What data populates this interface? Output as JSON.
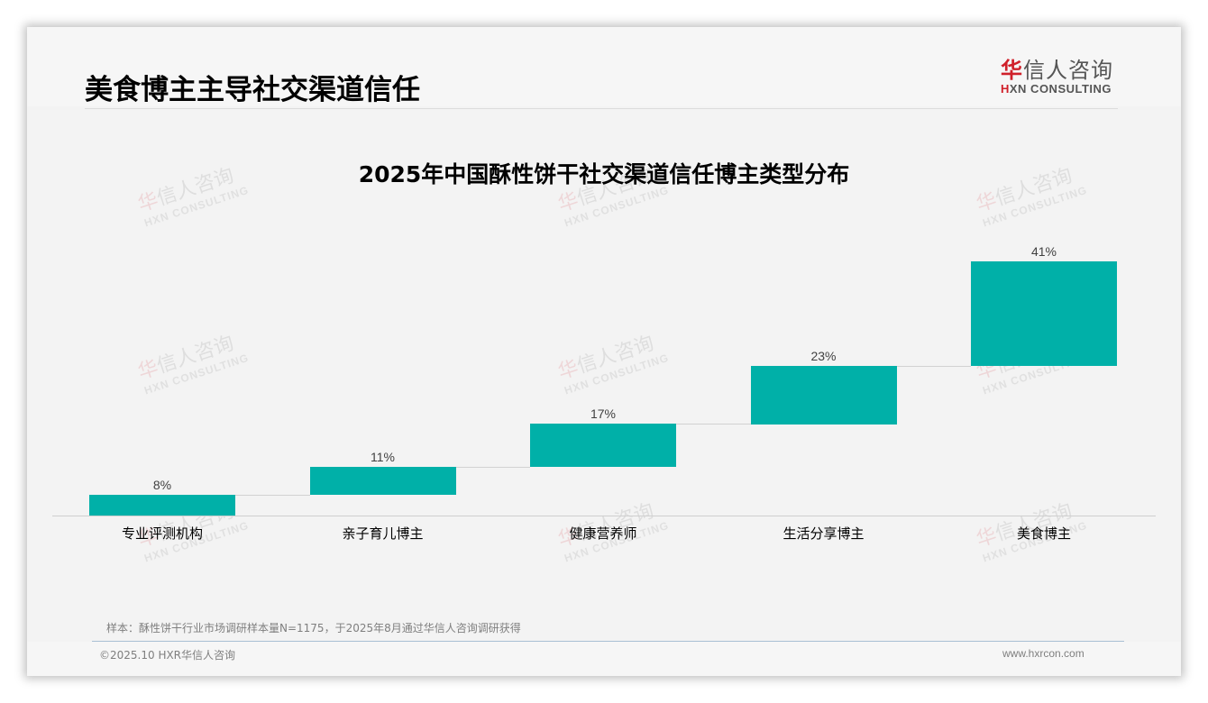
{
  "header": {
    "page_title": "美食博主主导社交渠道信任",
    "logo_cn_red": "华",
    "logo_cn_rest": "信人咨询",
    "logo_en_red": "H",
    "logo_en_rest": "XN CONSULTING"
  },
  "watermark": {
    "cn_red": "华",
    "cn_rest": "信人咨询",
    "en": "HXN CONSULTING"
  },
  "chart_data": {
    "type": "bar",
    "subtype": "waterfall",
    "title": "2025年中国酥性饼干社交渠道信任博主类型分布",
    "xlabel": "",
    "ylabel": "",
    "categories": [
      "专业评测机构",
      "亲子育儿博主",
      "健康营养师",
      "生活分享博主",
      "美食博主"
    ],
    "values": [
      8,
      11,
      17,
      23,
      41
    ],
    "value_labels": [
      "8%",
      "11%",
      "17%",
      "23%",
      "41%"
    ],
    "ylim": [
      0,
      100
    ],
    "unit": "%",
    "grid": false,
    "legend": "none",
    "bar_color": "#00b0a8"
  },
  "footer": {
    "note": "样本：酥性饼干行业市场调研样本量N=1175，于2025年8月通过华信人咨询调研获得",
    "copyright": "©2025.10 HXR华信人咨询",
    "website": "www.hxrcon.com"
  }
}
